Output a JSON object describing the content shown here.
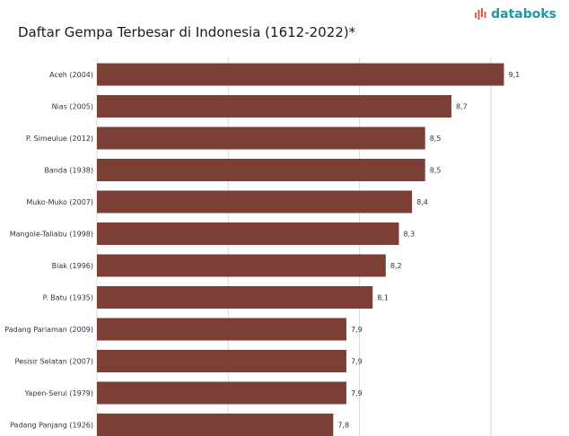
{
  "header": {
    "title": "Daftar Gempa Terbesar di Indonesia (1612-2022)*",
    "brand": "databoks"
  },
  "colors": {
    "bar": "#7b3f36",
    "brand": "#1c9aa6",
    "grid": "#d9d9d9"
  },
  "chart_data": {
    "type": "bar",
    "orientation": "horizontal",
    "title": "Daftar Gempa Terbesar di Indonesia (1612-2022)*",
    "xlabel": "",
    "ylabel": "",
    "xlim": [
      6,
      9.5
    ],
    "grid": true,
    "categories": [
      "Aceh (2004)",
      "Nias (2005)",
      "P. Simeulue (2012)",
      "Banda (1938)",
      "Muko-Muko (2007)",
      "Mangole-Taliabu (1998)",
      "Biak (1996)",
      "P. Batu (1935)",
      "Padang Pariaman (2009)",
      "Pesisir Selatan (2007)",
      "Yapen-Serui (1979)",
      "Padang Panjang (1926)"
    ],
    "values": [
      9.1,
      8.7,
      8.5,
      8.5,
      8.4,
      8.3,
      8.2,
      8.1,
      7.9,
      7.9,
      7.9,
      7.8
    ],
    "value_labels": [
      "9,1",
      "8,7",
      "8,5",
      "8,5",
      "8,4",
      "8,3",
      "8,2",
      "8,1",
      "7,9",
      "7,9",
      "7,9",
      "7,8"
    ]
  }
}
